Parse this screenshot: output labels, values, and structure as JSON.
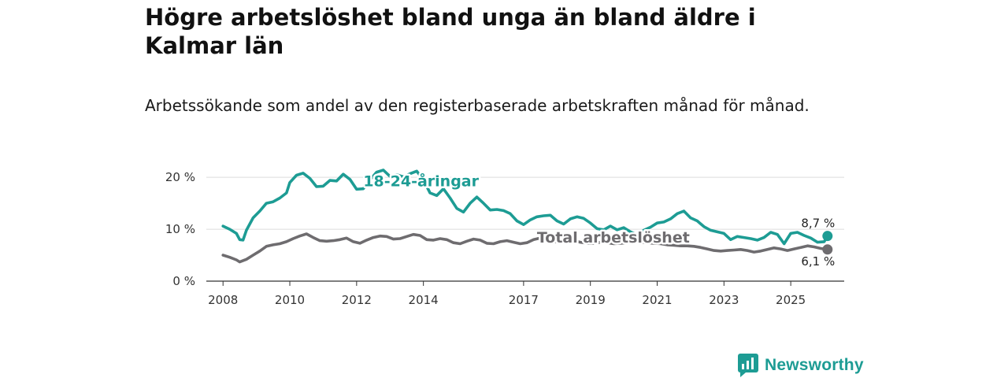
{
  "header": {
    "title": "Högre arbetslöshet bland unga än bland äldre i Kalmar län",
    "subtitle": "Arbetssökande som andel av den registerbaserade arbetskraften månad för månad."
  },
  "brand": {
    "name": "Newsworthy",
    "color": "#1d9c94"
  },
  "chart_data": {
    "type": "line",
    "title": "Högre arbetslöshet bland unga än bland äldre i Kalmar län",
    "subtitle": "Arbetssökande som andel av den registerbaserade arbetskraften månad för månad.",
    "xlabel": "",
    "ylabel": "",
    "xlim": [
      2007.5,
      2026.6
    ],
    "ylim": [
      0,
      22
    ],
    "y_ticks": [
      {
        "value": 0,
        "label": "0 %"
      },
      {
        "value": 10,
        "label": "10 %"
      },
      {
        "value": 20,
        "label": "20 %"
      }
    ],
    "x_ticks": [
      {
        "value": 2008,
        "label": "2008"
      },
      {
        "value": 2010,
        "label": "2010"
      },
      {
        "value": 2012,
        "label": "2012"
      },
      {
        "value": 2014,
        "label": "2014"
      },
      {
        "value": 2017,
        "label": "2017"
      },
      {
        "value": 2019,
        "label": "2019"
      },
      {
        "value": 2021,
        "label": "2021"
      },
      {
        "value": 2023,
        "label": "2023"
      },
      {
        "value": 2025,
        "label": "2025"
      }
    ],
    "grid": true,
    "series": [
      {
        "name": "18-24-åringar",
        "color": "#1d9c94",
        "end_label": "8,7 %",
        "points": [
          [
            2008.0,
            10.6
          ],
          [
            2008.2,
            10.0
          ],
          [
            2008.4,
            9.2
          ],
          [
            2008.5,
            8.0
          ],
          [
            2008.6,
            7.9
          ],
          [
            2008.7,
            9.8
          ],
          [
            2008.9,
            12.2
          ],
          [
            2009.1,
            13.5
          ],
          [
            2009.3,
            15.0
          ],
          [
            2009.5,
            15.3
          ],
          [
            2009.7,
            16.0
          ],
          [
            2009.9,
            17.0
          ],
          [
            2010.0,
            19.0
          ],
          [
            2010.2,
            20.4
          ],
          [
            2010.4,
            20.8
          ],
          [
            2010.6,
            19.8
          ],
          [
            2010.8,
            18.2
          ],
          [
            2011.0,
            18.3
          ],
          [
            2011.2,
            19.4
          ],
          [
            2011.4,
            19.3
          ],
          [
            2011.6,
            20.6
          ],
          [
            2011.8,
            19.6
          ],
          [
            2012.0,
            17.7
          ],
          [
            2012.2,
            17.8
          ],
          [
            2012.4,
            19.5
          ],
          [
            2012.6,
            21.0
          ],
          [
            2012.8,
            21.4
          ],
          [
            2013.0,
            20.2
          ],
          [
            2013.2,
            20.5
          ],
          [
            2013.4,
            20.1
          ],
          [
            2013.6,
            20.7
          ],
          [
            2013.8,
            21.2
          ],
          [
            2014.0,
            19.5
          ],
          [
            2014.2,
            17.0
          ],
          [
            2014.4,
            16.5
          ],
          [
            2014.6,
            17.8
          ],
          [
            2014.8,
            16.0
          ],
          [
            2015.0,
            14.0
          ],
          [
            2015.2,
            13.3
          ],
          [
            2015.4,
            15.0
          ],
          [
            2015.6,
            16.2
          ],
          [
            2015.8,
            15.0
          ],
          [
            2016.0,
            13.7
          ],
          [
            2016.2,
            13.8
          ],
          [
            2016.4,
            13.6
          ],
          [
            2016.6,
            13.0
          ],
          [
            2016.8,
            11.6
          ],
          [
            2017.0,
            10.9
          ],
          [
            2017.2,
            11.8
          ],
          [
            2017.4,
            12.4
          ],
          [
            2017.6,
            12.6
          ],
          [
            2017.8,
            12.7
          ],
          [
            2018.0,
            11.6
          ],
          [
            2018.2,
            11.0
          ],
          [
            2018.4,
            12.0
          ],
          [
            2018.6,
            12.4
          ],
          [
            2018.8,
            12.1
          ],
          [
            2019.0,
            11.2
          ],
          [
            2019.2,
            10.1
          ],
          [
            2019.4,
            9.9
          ],
          [
            2019.6,
            10.6
          ],
          [
            2019.8,
            9.9
          ],
          [
            2020.0,
            10.3
          ],
          [
            2020.2,
            9.5
          ],
          [
            2020.4,
            8.9
          ],
          [
            2020.6,
            9.8
          ],
          [
            2020.8,
            10.4
          ],
          [
            2021.0,
            11.2
          ],
          [
            2021.2,
            11.4
          ],
          [
            2021.4,
            12.0
          ],
          [
            2021.6,
            13.0
          ],
          [
            2021.8,
            13.5
          ],
          [
            2022.0,
            12.2
          ],
          [
            2022.2,
            11.6
          ],
          [
            2022.4,
            10.5
          ],
          [
            2022.6,
            9.8
          ],
          [
            2022.8,
            9.5
          ],
          [
            2023.0,
            9.2
          ],
          [
            2023.2,
            8.0
          ],
          [
            2023.4,
            8.6
          ],
          [
            2023.6,
            8.4
          ],
          [
            2023.8,
            8.2
          ],
          [
            2024.0,
            7.9
          ],
          [
            2024.2,
            8.4
          ],
          [
            2024.4,
            9.4
          ],
          [
            2024.6,
            9.0
          ],
          [
            2024.8,
            7.2
          ],
          [
            2025.0,
            9.2
          ],
          [
            2025.2,
            9.4
          ],
          [
            2025.4,
            8.8
          ],
          [
            2025.6,
            8.3
          ],
          [
            2025.8,
            7.5
          ],
          [
            2026.0,
            7.6
          ],
          [
            2026.1,
            8.7
          ]
        ]
      },
      {
        "name": "Total arbetslöshet",
        "color": "#6e6c6f",
        "end_label": "6,1 %",
        "points": [
          [
            2008.0,
            5.0
          ],
          [
            2008.2,
            4.6
          ],
          [
            2008.4,
            4.1
          ],
          [
            2008.5,
            3.7
          ],
          [
            2008.7,
            4.2
          ],
          [
            2008.9,
            5.0
          ],
          [
            2009.1,
            5.8
          ],
          [
            2009.3,
            6.7
          ],
          [
            2009.5,
            7.0
          ],
          [
            2009.7,
            7.2
          ],
          [
            2009.9,
            7.6
          ],
          [
            2010.1,
            8.2
          ],
          [
            2010.3,
            8.7
          ],
          [
            2010.5,
            9.1
          ],
          [
            2010.7,
            8.4
          ],
          [
            2010.9,
            7.8
          ],
          [
            2011.1,
            7.7
          ],
          [
            2011.3,
            7.8
          ],
          [
            2011.5,
            8.0
          ],
          [
            2011.7,
            8.3
          ],
          [
            2011.9,
            7.6
          ],
          [
            2012.1,
            7.3
          ],
          [
            2012.3,
            7.9
          ],
          [
            2012.5,
            8.4
          ],
          [
            2012.7,
            8.7
          ],
          [
            2012.9,
            8.6
          ],
          [
            2013.1,
            8.1
          ],
          [
            2013.3,
            8.2
          ],
          [
            2013.5,
            8.6
          ],
          [
            2013.7,
            9.0
          ],
          [
            2013.9,
            8.8
          ],
          [
            2014.1,
            8.0
          ],
          [
            2014.3,
            7.9
          ],
          [
            2014.5,
            8.2
          ],
          [
            2014.7,
            8.0
          ],
          [
            2014.9,
            7.4
          ],
          [
            2015.1,
            7.2
          ],
          [
            2015.3,
            7.7
          ],
          [
            2015.5,
            8.1
          ],
          [
            2015.7,
            7.9
          ],
          [
            2015.9,
            7.3
          ],
          [
            2016.1,
            7.2
          ],
          [
            2016.3,
            7.6
          ],
          [
            2016.5,
            7.8
          ],
          [
            2016.7,
            7.5
          ],
          [
            2016.9,
            7.2
          ],
          [
            2017.1,
            7.4
          ],
          [
            2017.3,
            8.0
          ],
          [
            2017.5,
            8.3
          ],
          [
            2017.7,
            8.0
          ],
          [
            2017.9,
            7.6
          ],
          [
            2018.1,
            7.6
          ],
          [
            2018.3,
            7.9
          ],
          [
            2018.5,
            7.8
          ],
          [
            2018.7,
            7.5
          ],
          [
            2018.9,
            7.3
          ],
          [
            2019.1,
            7.3
          ],
          [
            2019.3,
            7.5
          ],
          [
            2019.5,
            7.4
          ],
          [
            2019.7,
            7.2
          ],
          [
            2019.9,
            7.3
          ],
          [
            2020.1,
            7.4
          ],
          [
            2020.3,
            7.6
          ],
          [
            2020.5,
            7.5
          ],
          [
            2020.7,
            7.4
          ],
          [
            2020.9,
            7.3
          ],
          [
            2021.1,
            7.2
          ],
          [
            2021.3,
            7.0
          ],
          [
            2021.5,
            6.9
          ],
          [
            2021.7,
            6.8
          ],
          [
            2021.9,
            6.8
          ],
          [
            2022.1,
            6.7
          ],
          [
            2022.3,
            6.5
          ],
          [
            2022.5,
            6.2
          ],
          [
            2022.7,
            5.9
          ],
          [
            2022.9,
            5.8
          ],
          [
            2023.1,
            5.9
          ],
          [
            2023.3,
            6.0
          ],
          [
            2023.5,
            6.1
          ],
          [
            2023.7,
            5.9
          ],
          [
            2023.9,
            5.6
          ],
          [
            2024.1,
            5.8
          ],
          [
            2024.3,
            6.1
          ],
          [
            2024.5,
            6.4
          ],
          [
            2024.7,
            6.2
          ],
          [
            2024.9,
            5.9
          ],
          [
            2025.1,
            6.2
          ],
          [
            2025.3,
            6.5
          ],
          [
            2025.5,
            6.8
          ],
          [
            2025.7,
            6.6
          ],
          [
            2025.9,
            6.3
          ],
          [
            2026.1,
            6.1
          ]
        ]
      }
    ],
    "legend": "inline labels",
    "annotations": [
      {
        "series": "18-24-åringar",
        "text": "18-24-åringar",
        "at": [
          2012.2,
          18.3
        ]
      },
      {
        "series": "Total arbetslöshet",
        "text": "Total arbetslöshet",
        "at": [
          2017.4,
          7.4
        ]
      }
    ]
  }
}
